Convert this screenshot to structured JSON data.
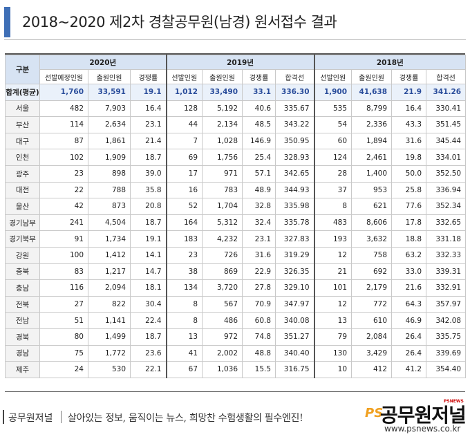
{
  "title": "2018~2020 제2차 경찰공무원(남경) 원서접수 결과",
  "table": {
    "region_header": "구분",
    "years": [
      {
        "label": "2020년",
        "cols": [
          "선발예정인원",
          "출원인원",
          "경쟁률"
        ]
      },
      {
        "label": "2019년",
        "cols": [
          "선발인원",
          "출원인원",
          "경쟁률",
          "합격선"
        ]
      },
      {
        "label": "2018년",
        "cols": [
          "선발인원",
          "출원인원",
          "경쟁률",
          "합격선"
        ]
      }
    ],
    "total": {
      "region": "합계(평균)",
      "values": [
        "1,760",
        "33,591",
        "19.1",
        "1,012",
        "33,490",
        "33.1",
        "336.30",
        "1,900",
        "41,638",
        "21.9",
        "341.26"
      ]
    },
    "rows": [
      {
        "region": "서울",
        "values": [
          "482",
          "7,903",
          "16.4",
          "128",
          "5,192",
          "40.6",
          "335.67",
          "535",
          "8,799",
          "16.4",
          "330.41"
        ]
      },
      {
        "region": "부산",
        "values": [
          "114",
          "2,634",
          "23.1",
          "44",
          "2,134",
          "48.5",
          "343.22",
          "54",
          "2,336",
          "43.3",
          "351.45"
        ]
      },
      {
        "region": "대구",
        "values": [
          "87",
          "1,861",
          "21.4",
          "7",
          "1,028",
          "146.9",
          "350.95",
          "60",
          "1,894",
          "31.6",
          "345.44"
        ]
      },
      {
        "region": "인천",
        "values": [
          "102",
          "1,909",
          "18.7",
          "69",
          "1,756",
          "25.4",
          "328.93",
          "124",
          "2,461",
          "19.8",
          "334.01"
        ]
      },
      {
        "region": "광주",
        "values": [
          "23",
          "898",
          "39.0",
          "17",
          "971",
          "57.1",
          "342.65",
          "28",
          "1,400",
          "50.0",
          "352.50"
        ]
      },
      {
        "region": "대전",
        "values": [
          "22",
          "788",
          "35.8",
          "16",
          "783",
          "48.9",
          "344.93",
          "37",
          "953",
          "25.8",
          "336.94"
        ]
      },
      {
        "region": "울산",
        "values": [
          "42",
          "873",
          "20.8",
          "52",
          "1,704",
          "32.8",
          "335.98",
          "8",
          "621",
          "77.6",
          "352.34"
        ]
      },
      {
        "region": "경기남부",
        "values": [
          "241",
          "4,504",
          "18.7",
          "164",
          "5,312",
          "32.4",
          "335.78",
          "483",
          "8,606",
          "17.8",
          "332.65"
        ]
      },
      {
        "region": "경기북부",
        "values": [
          "91",
          "1,734",
          "19.1",
          "183",
          "4,232",
          "23.1",
          "327.83",
          "193",
          "3,632",
          "18.8",
          "331.18"
        ]
      },
      {
        "region": "강원",
        "values": [
          "100",
          "1,412",
          "14.1",
          "23",
          "726",
          "31.6",
          "319.29",
          "12",
          "758",
          "63.2",
          "332.33"
        ]
      },
      {
        "region": "충북",
        "values": [
          "83",
          "1,217",
          "14.7",
          "38",
          "869",
          "22.9",
          "326.35",
          "21",
          "692",
          "33.0",
          "339.31"
        ]
      },
      {
        "region": "충남",
        "values": [
          "116",
          "2,094",
          "18.1",
          "134",
          "3,720",
          "27.8",
          "329.10",
          "101",
          "2,179",
          "21.6",
          "332.91"
        ]
      },
      {
        "region": "전북",
        "values": [
          "27",
          "822",
          "30.4",
          "8",
          "567",
          "70.9",
          "347.97",
          "12",
          "772",
          "64.3",
          "357.97"
        ]
      },
      {
        "region": "전남",
        "values": [
          "51",
          "1,141",
          "22.4",
          "8",
          "486",
          "60.8",
          "340.08",
          "13",
          "610",
          "46.9",
          "342.08"
        ]
      },
      {
        "region": "경북",
        "values": [
          "80",
          "1,499",
          "18.7",
          "13",
          "972",
          "74.8",
          "351.27",
          "79",
          "2,084",
          "26.4",
          "335.75"
        ]
      },
      {
        "region": "경남",
        "values": [
          "75",
          "1,772",
          "23.6",
          "41",
          "2,002",
          "48.8",
          "340.40",
          "130",
          "3,429",
          "26.4",
          "339.69"
        ]
      },
      {
        "region": "제주",
        "values": [
          "24",
          "530",
          "22.1",
          "67",
          "1,036",
          "15.5",
          "316.75",
          "10",
          "412",
          "41.2",
          "354.40"
        ]
      }
    ]
  },
  "footer": {
    "brand": "공무원저널",
    "slogan": "살아있는 정보, 움직이는 뉴스, 희망찬 수험생활의 필수엔진!",
    "logo_ps": "PS",
    "logo_text": "공무원저널",
    "logo_badge": "PSNEWS",
    "url": "www.psnews.co.kr"
  }
}
